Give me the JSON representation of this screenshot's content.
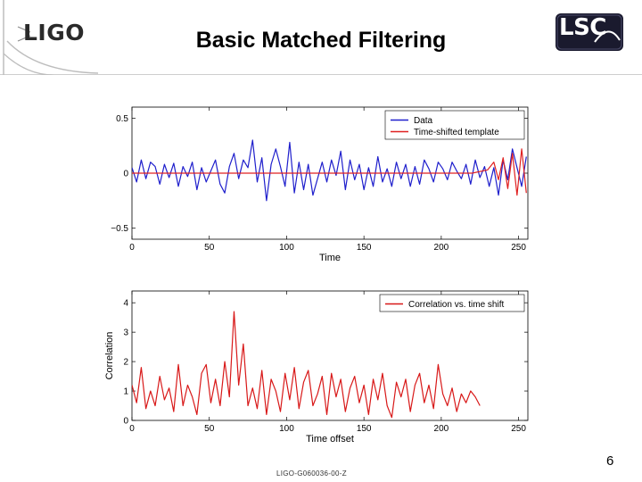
{
  "slide": {
    "title": "Basic Matched Filtering",
    "left_logo": "LIGO",
    "right_logo": "LSC",
    "page_number": "6",
    "doc_id": "LIGO-G060036-00-Z"
  },
  "colors": {
    "data_series": "#1f1fcc",
    "template_series": "#e02020",
    "correlation_series": "#d81818",
    "axis": "#000000",
    "logo_grey": "#bdbdbd",
    "lsc_badge": "#1a1a2e"
  },
  "chart_data": [
    {
      "type": "line",
      "xlabel": "Time",
      "ylabel": "",
      "xlim": [
        0,
        256
      ],
      "ylim": [
        -0.6,
        0.6
      ],
      "x_ticks": [
        0,
        50,
        100,
        150,
        200,
        250
      ],
      "x_tick_labels": [
        "0",
        "50",
        "100",
        "150",
        "200",
        "250"
      ],
      "y_ticks": [
        -0.5,
        0,
        0.5
      ],
      "y_tick_labels": [
        "−0.5",
        "0",
        "0.5"
      ],
      "legend_position": "top-right",
      "series": [
        {
          "name": "Data",
          "color": "#1f1fcc",
          "x": [
            0,
            3,
            6,
            9,
            12,
            15,
            18,
            21,
            24,
            27,
            30,
            33,
            36,
            39,
            42,
            45,
            48,
            51,
            54,
            57,
            60,
            63,
            66,
            69,
            72,
            75,
            78,
            81,
            84,
            87,
            90,
            93,
            96,
            99,
            102,
            105,
            108,
            111,
            114,
            117,
            120,
            123,
            126,
            129,
            132,
            135,
            138,
            141,
            144,
            147,
            150,
            153,
            156,
            159,
            162,
            165,
            168,
            171,
            174,
            177,
            180,
            183,
            186,
            189,
            192,
            195,
            198,
            201,
            204,
            207,
            210,
            213,
            216,
            219,
            222,
            225,
            228,
            231,
            234,
            237,
            240,
            243,
            246,
            249,
            252,
            255
          ],
          "y": [
            0.05,
            -0.08,
            0.12,
            -0.05,
            0.1,
            0.06,
            -0.1,
            0.08,
            -0.04,
            0.09,
            -0.12,
            0.06,
            -0.03,
            0.1,
            -0.15,
            0.05,
            -0.08,
            0.02,
            0.12,
            -0.1,
            -0.18,
            0.06,
            0.18,
            -0.05,
            0.12,
            0.05,
            0.3,
            -0.08,
            0.14,
            -0.25,
            0.08,
            0.22,
            0.06,
            -0.12,
            0.28,
            -0.18,
            0.1,
            -0.15,
            0.08,
            -0.2,
            -0.05,
            0.1,
            -0.08,
            0.12,
            -0.02,
            0.2,
            -0.15,
            0.12,
            -0.06,
            0.08,
            -0.15,
            0.05,
            -0.12,
            0.15,
            -0.08,
            0.04,
            -0.12,
            0.1,
            -0.05,
            0.08,
            -0.12,
            0.06,
            -0.1,
            0.12,
            0.04,
            -0.08,
            0.1,
            0.04,
            -0.06,
            0.1,
            0.02,
            -0.05,
            0.08,
            -0.1,
            0.12,
            -0.04,
            0.06,
            -0.12,
            0.05,
            -0.2,
            0.12,
            -0.06,
            0.22,
            0.05,
            -0.12,
            0.15
          ]
        },
        {
          "name": "Time-shifted template",
          "color": "#e02020",
          "x": [
            0,
            10,
            20,
            30,
            40,
            50,
            60,
            70,
            80,
            90,
            100,
            110,
            120,
            130,
            140,
            150,
            160,
            170,
            180,
            190,
            200,
            210,
            220,
            230,
            234,
            237,
            240,
            243,
            246,
            249,
            252,
            255
          ],
          "y": [
            0,
            0,
            0,
            0,
            0,
            0,
            0,
            0,
            0,
            0,
            0,
            0,
            0,
            0,
            0,
            0,
            0,
            0,
            0,
            0,
            0,
            0,
            0,
            0.03,
            0.1,
            -0.06,
            0.14,
            -0.14,
            0.18,
            -0.2,
            0.22,
            -0.18
          ]
        }
      ]
    },
    {
      "type": "line",
      "xlabel": "Time offset",
      "ylabel": "Correlation",
      "xlim": [
        0,
        256
      ],
      "ylim": [
        0,
        4.4
      ],
      "x_ticks": [
        0,
        50,
        100,
        150,
        200,
        250
      ],
      "x_tick_labels": [
        "0",
        "50",
        "100",
        "150",
        "200",
        "250"
      ],
      "y_ticks": [
        0,
        1,
        2,
        3,
        4
      ],
      "y_tick_labels": [
        "0",
        "1",
        "2",
        "3",
        "4"
      ],
      "legend_position": "top-right",
      "series": [
        {
          "name": "Correlation vs. time shift",
          "color": "#d81818",
          "x": [
            0,
            3,
            6,
            9,
            12,
            15,
            18,
            21,
            24,
            27,
            30,
            33,
            36,
            39,
            42,
            45,
            48,
            51,
            54,
            57,
            60,
            63,
            66,
            69,
            72,
            75,
            78,
            81,
            84,
            87,
            90,
            93,
            96,
            99,
            102,
            105,
            108,
            111,
            114,
            117,
            120,
            123,
            126,
            129,
            132,
            135,
            138,
            141,
            144,
            147,
            150,
            153,
            156,
            159,
            162,
            165,
            168,
            171,
            174,
            177,
            180,
            183,
            186,
            189,
            192,
            195,
            198,
            201,
            204,
            207,
            210,
            213,
            216,
            219,
            222,
            225
          ],
          "y": [
            1.2,
            0.6,
            1.8,
            0.4,
            1.0,
            0.5,
            1.5,
            0.7,
            1.1,
            0.3,
            1.9,
            0.5,
            1.2,
            0.8,
            0.2,
            1.6,
            1.9,
            0.6,
            1.4,
            0.5,
            2.0,
            0.8,
            3.7,
            1.2,
            2.6,
            0.5,
            1.1,
            0.4,
            1.7,
            0.2,
            1.4,
            1.0,
            0.3,
            1.6,
            0.7,
            1.8,
            0.4,
            1.3,
            1.7,
            0.5,
            0.9,
            1.5,
            0.2,
            1.6,
            0.8,
            1.4,
            0.3,
            1.1,
            1.5,
            0.6,
            1.2,
            0.2,
            1.4,
            0.7,
            1.6,
            0.5,
            0.1,
            1.3,
            0.8,
            1.4,
            0.3,
            1.2,
            1.6,
            0.6,
            1.2,
            0.4,
            1.9,
            0.9,
            0.5,
            1.1,
            0.3,
            0.9,
            0.6,
            1.0,
            0.8,
            0.5
          ]
        }
      ]
    }
  ]
}
